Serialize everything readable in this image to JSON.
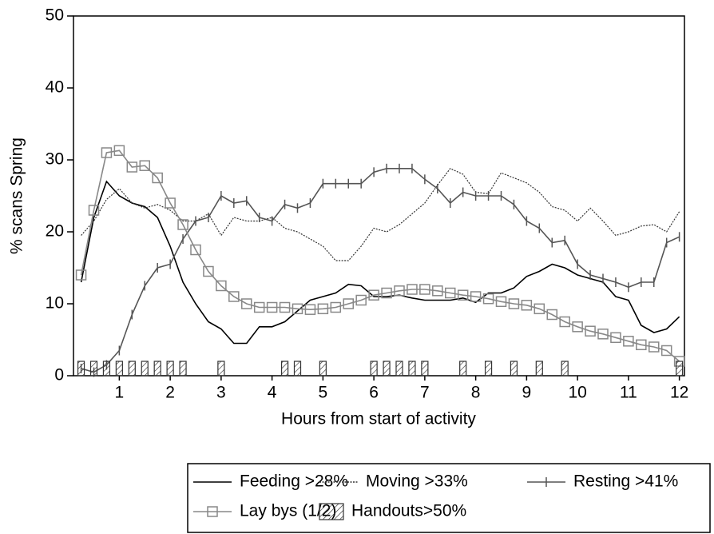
{
  "chart_data": {
    "type": "line",
    "xlabel": "Hours from start of activity",
    "ylabel": "% scans Spring",
    "x": [
      0.25,
      0.5,
      0.75,
      1,
      1.25,
      1.5,
      1.75,
      2,
      2.25,
      2.5,
      2.75,
      3,
      3.25,
      3.5,
      3.75,
      4,
      4.25,
      4.5,
      4.75,
      5,
      5.25,
      5.5,
      5.75,
      6,
      6.25,
      6.5,
      6.75,
      7,
      7.25,
      7.5,
      7.75,
      8,
      8.25,
      8.5,
      8.75,
      9,
      9.25,
      9.5,
      9.75,
      10,
      10.25,
      10.5,
      10.75,
      11,
      11.25,
      11.5,
      11.75,
      12
    ],
    "series": [
      {
        "name": "Feeding >28%",
        "color": "#000000",
        "line": "solid",
        "marker": "none",
        "values": [
          13,
          22,
          27,
          25,
          24,
          23.5,
          22,
          18,
          13,
          10,
          7.5,
          6.5,
          4.5,
          4.5,
          6.8,
          6.8,
          7.5,
          9,
          10.5,
          11,
          11.5,
          12.7,
          12.5,
          11,
          11,
          11.2,
          10.8,
          10.5,
          10.5,
          10.5,
          10.8,
          10.2,
          11.5,
          11.5,
          12.2,
          13.8,
          14.5,
          15.5,
          15,
          14,
          13.5,
          13,
          11,
          10.5,
          7,
          6,
          6.5,
          8.2
        ]
      },
      {
        "name": "Moving >33%",
        "color": "#333333",
        "line": "dotted",
        "marker": "none",
        "values": [
          19.5,
          21.5,
          24.5,
          26,
          24,
          23.3,
          23.8,
          23,
          21.5,
          21.5,
          22.5,
          19.5,
          22,
          21.5,
          21.5,
          22,
          20.5,
          20,
          19,
          18,
          16,
          16,
          18,
          20.5,
          20,
          21,
          22.5,
          24,
          26.5,
          28.8,
          28,
          25.5,
          25.3,
          28.2,
          27.5,
          26.8,
          25.5,
          23.5,
          23,
          21.5,
          23.3,
          21.5,
          19.5,
          20,
          20.8,
          21,
          20,
          22.8
        ]
      },
      {
        "name": "Resting >41%",
        "color": "#555555",
        "line": "solid",
        "marker": "tick",
        "values": [
          1,
          0.5,
          1.5,
          3.5,
          8.5,
          12.5,
          15,
          15.5,
          19,
          21.5,
          22,
          25,
          24,
          24.3,
          22,
          21.5,
          23.8,
          23.3,
          24,
          26.7,
          26.7,
          26.7,
          26.7,
          28.3,
          28.8,
          28.8,
          28.8,
          27.3,
          26,
          24,
          25.5,
          25,
          25,
          25,
          23.8,
          21.5,
          20.5,
          18.5,
          18.8,
          15.5,
          14,
          13.5,
          13,
          12.3,
          13,
          13,
          18.5,
          19.3
        ]
      },
      {
        "name": "Lay bys (1/2)",
        "color": "#888888",
        "line": "solid",
        "marker": "square",
        "values": [
          14,
          23,
          31,
          31.3,
          29,
          29.2,
          27.5,
          24,
          21,
          17.5,
          14.5,
          12.5,
          11,
          10,
          9.5,
          9.5,
          9.5,
          9.3,
          9.2,
          9.3,
          9.5,
          10,
          10.5,
          11.2,
          11.5,
          11.8,
          12,
          12,
          11.8,
          11.5,
          11.2,
          11,
          10.7,
          10.3,
          10,
          9.8,
          9.3,
          8.5,
          7.5,
          6.8,
          6.2,
          5.8,
          5.3,
          4.8,
          4.3,
          4,
          3.5,
          2
        ]
      },
      {
        "name": "Handouts>50%",
        "color": "#333333",
        "line": "none",
        "marker": "hatch",
        "values": [
          2,
          2,
          2,
          2,
          2,
          2,
          2,
          2,
          2,
          null,
          null,
          2,
          null,
          null,
          null,
          null,
          2,
          2,
          null,
          2,
          null,
          null,
          null,
          2,
          2,
          2,
          2,
          2,
          null,
          null,
          2,
          null,
          2,
          null,
          2,
          null,
          2,
          null,
          2,
          null,
          null,
          null,
          null,
          null,
          null,
          null,
          null,
          2
        ]
      }
    ],
    "xlim": [
      0.1,
      12.1
    ],
    "xticks": [
      1,
      2,
      3,
      4,
      5,
      6,
      7,
      8,
      9,
      10,
      11,
      12
    ],
    "ylim": [
      0,
      50
    ],
    "yticks": [
      0,
      10,
      20,
      30,
      40,
      50
    ]
  }
}
